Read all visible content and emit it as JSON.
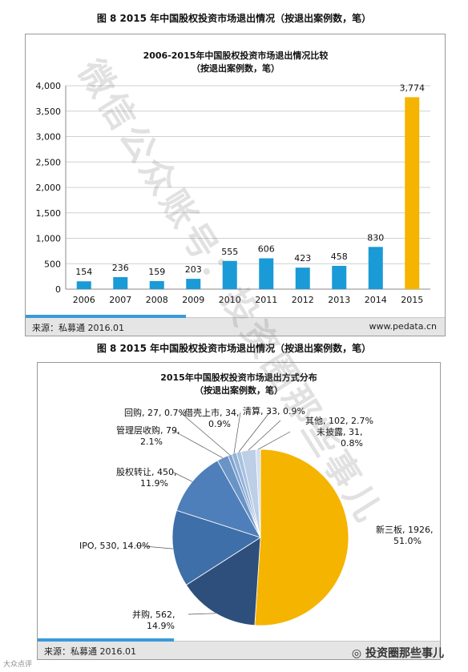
{
  "figure_title_top": "图 8 2015 年中国股权投资市场退出情况（按退出案例数，笔）",
  "figure_title_mid": "图 8 2015 年中国股权投资市场退出情况（按退出案例数，笔）",
  "source_label": "来源：私募通 2016.01",
  "site_label": "www.pedata.cn",
  "wechat_brand": "投资圈那些事儿",
  "corner_mark": "大众点评",
  "watermark_top": "微信公众账号：投资圈那些事儿",
  "colors": {
    "bar_blue": "#1a9ad6",
    "bar_gold": "#f5b400",
    "pie_gold": "#f5b400",
    "pie_navy": "#2e4f7c",
    "pie_blue": "#3e6fa8",
    "pie_mid": "#4f7fba",
    "pie_light": "#8fb0d6",
    "pie_pale": "#b8cde6"
  },
  "chart_data": [
    {
      "type": "bar",
      "title": "2006-2015年中国股权投资市场退出情况比较",
      "subtitle": "（按退出案例数，笔）",
      "categories": [
        "2006",
        "2007",
        "2008",
        "2009",
        "2010",
        "2011",
        "2012",
        "2013",
        "2014",
        "2015"
      ],
      "values": [
        154,
        236,
        159,
        203,
        555,
        606,
        423,
        458,
        830,
        3774
      ],
      "value_labels": [
        "154",
        "236",
        "159",
        "203",
        "555",
        "606",
        "423",
        "458",
        "830",
        "3,774"
      ],
      "ylim": [
        0,
        4000
      ],
      "yticks": [
        0,
        500,
        1000,
        1500,
        2000,
        2500,
        3000,
        3500,
        4000
      ],
      "ytick_labels": [
        "0",
        "500",
        "1,000",
        "1,500",
        "2,000",
        "2,500",
        "3,000",
        "3,500",
        "4,000"
      ],
      "grid": true,
      "highlight_index": 9
    },
    {
      "type": "pie",
      "title": "2015年中国股权投资市场退出方式分布",
      "subtitle": "（按退出案例数，笔）",
      "slices": [
        {
          "label": "新三板",
          "value": 1926,
          "pct": "51.0%",
          "text_line1": "新三板, 1926,",
          "text_line2": "51.0%",
          "color": "#f5b400"
        },
        {
          "label": "并购",
          "value": 562,
          "pct": "14.9%",
          "text_line1": "并购, 562,",
          "text_line2": "14.9%",
          "color": "#2e4f7c"
        },
        {
          "label": "IPO",
          "value": 530,
          "pct": "14.0%",
          "text_line1": "IPO, 530, 14.0%",
          "text_line2": "",
          "color": "#3e6fa8"
        },
        {
          "label": "股权转让",
          "value": 450,
          "pct": "11.9%",
          "text_line1": "股权转让, 450,",
          "text_line2": "11.9%",
          "color": "#4f7fba"
        },
        {
          "label": "管理层收购",
          "value": 79,
          "pct": "2.1%",
          "text_line1": "管理层收购, 79,",
          "text_line2": "2.1%",
          "color": "#6a93c6"
        },
        {
          "label": "回购",
          "value": 27,
          "pct": "0.7%",
          "text_line1": "回购, 27, 0.7%",
          "text_line2": "",
          "color": "#7fa2cf"
        },
        {
          "label": "借壳上市",
          "value": 34,
          "pct": "0.9%",
          "text_line1": "借壳上市, 34,",
          "text_line2": "0.9%",
          "color": "#94b3d9"
        },
        {
          "label": "清算",
          "value": 33,
          "pct": "0.9%",
          "text_line1": "清算, 33, 0.9%",
          "text_line2": "",
          "color": "#a8c1e0"
        },
        {
          "label": "其他",
          "value": 102,
          "pct": "2.7%",
          "text_line1": "其他, 102, 2.7%",
          "text_line2": "",
          "color": "#bccfe7"
        },
        {
          "label": "未披露",
          "value": 31,
          "pct": "0.8%",
          "text_line1": "未披露, 31,",
          "text_line2": "0.8%",
          "color": "#d2dff0"
        }
      ]
    }
  ]
}
